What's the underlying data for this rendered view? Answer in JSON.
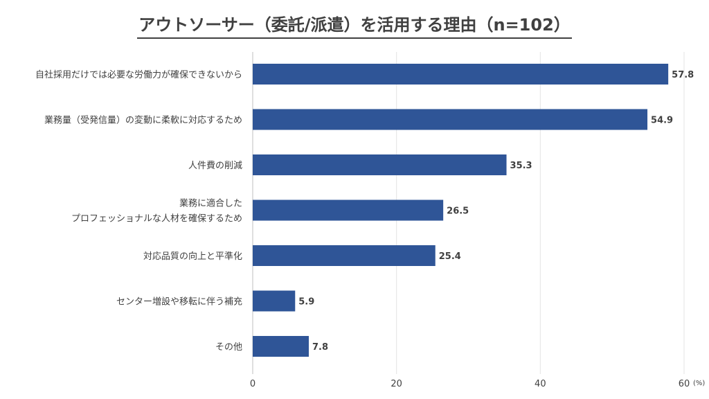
{
  "chart_data": {
    "type": "bar",
    "orientation": "horizontal",
    "title": "アウトソーサー（委託/派遣）を活用する理由（n=102）",
    "categories": [
      [
        "自社採用だけでは必要な労働力が確保できないから"
      ],
      [
        "業務量（受発信量）の変動に柔軟に対応するため"
      ],
      [
        "人件費の削減"
      ],
      [
        "業務に適合した",
        "プロフェッショナルな人材を確保するため"
      ],
      [
        "対応品質の向上と平準化"
      ],
      [
        "センター増設や移転に伴う補充"
      ],
      [
        "その他"
      ]
    ],
    "values": [
      57.8,
      54.9,
      35.3,
      26.5,
      25.4,
      5.9,
      7.8
    ],
    "value_labels": [
      "57.8",
      "54.9",
      "35.3",
      "26.5",
      "25.4",
      "5.9",
      "7.8"
    ],
    "xlim": [
      0,
      60
    ],
    "xticks": [
      "0",
      "20",
      "40",
      "60"
    ],
    "tick_values": [
      0,
      20,
      40,
      60
    ],
    "unit": "(%)",
    "grid": true,
    "bar_color": "#2f5597"
  }
}
